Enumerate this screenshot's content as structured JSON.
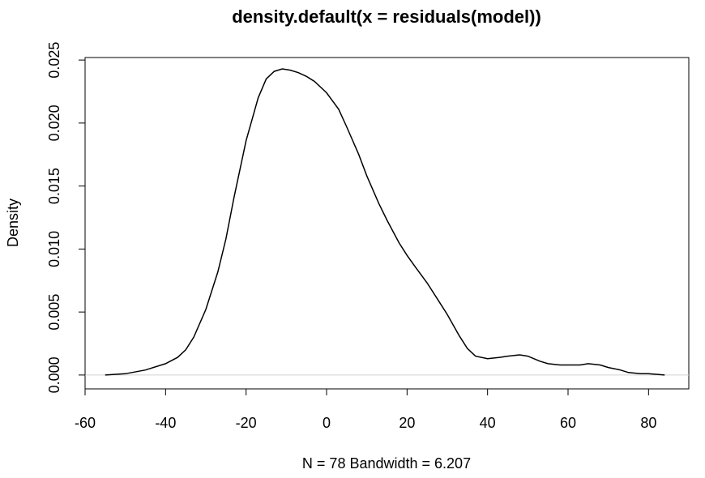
{
  "chart_data": {
    "type": "line",
    "title": "density.default(x = residuals(model))",
    "xlabel": "N = 78   Bandwidth = 6.207",
    "ylabel": "Density",
    "xlim": [
      -60,
      90
    ],
    "ylim": [
      -0.0011,
      0.0252
    ],
    "x_ticks": [
      -60,
      -40,
      -20,
      0,
      20,
      40,
      60,
      80
    ],
    "x_tick_labels": [
      "-60",
      "-40",
      "-20",
      "0",
      "20",
      "40",
      "60",
      "80"
    ],
    "y_ticks": [
      0.0,
      0.005,
      0.01,
      0.015,
      0.02,
      0.025
    ],
    "y_tick_labels": [
      "0.000",
      "0.005",
      "0.010",
      "0.015",
      "0.020",
      "0.025"
    ],
    "grid": false,
    "baseline": 0,
    "series": [
      {
        "x": [
          -55,
          -50,
          -45,
          -40,
          -37,
          -35,
          -33,
          -30,
          -27,
          -25,
          -23,
          -20,
          -17,
          -15,
          -13,
          -11,
          -9,
          -7,
          -5,
          -3,
          0,
          3,
          5,
          8,
          10,
          13,
          15,
          18,
          20,
          22,
          25,
          28,
          30,
          33,
          35,
          37,
          40,
          43,
          45,
          48,
          50,
          53,
          55,
          58,
          60,
          63,
          65,
          68,
          70,
          73,
          75,
          78,
          80,
          84
        ],
        "y": [
          0.0,
          0.0001,
          0.0004,
          0.0009,
          0.0014,
          0.002,
          0.003,
          0.0052,
          0.0082,
          0.0108,
          0.0141,
          0.0186,
          0.022,
          0.0235,
          0.0241,
          0.0243,
          0.0242,
          0.024,
          0.0237,
          0.0233,
          0.0224,
          0.0211,
          0.0197,
          0.0175,
          0.0158,
          0.0136,
          0.0123,
          0.0105,
          0.0095,
          0.0086,
          0.0073,
          0.0058,
          0.0048,
          0.0031,
          0.0021,
          0.0015,
          0.0013,
          0.0014,
          0.0015,
          0.0016,
          0.0015,
          0.0011,
          0.0009,
          0.0008,
          0.0008,
          0.0008,
          0.0009,
          0.0008,
          0.0006,
          0.0004,
          0.0002,
          0.0001,
          0.0001,
          0.0
        ]
      }
    ]
  }
}
